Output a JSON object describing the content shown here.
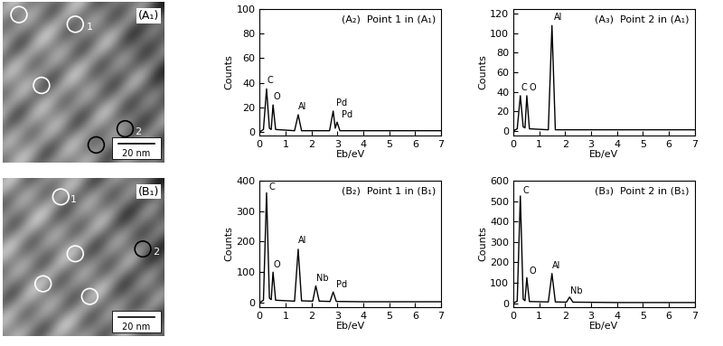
{
  "images": [
    {
      "label": "(A₁)",
      "points": [
        "1",
        "2"
      ],
      "scale_bar": "20 nm"
    },
    {
      "label": "(B₁)",
      "points": [
        "1",
        "2"
      ],
      "scale_bar": "20 nm"
    }
  ],
  "chart_data": [
    {
      "type": "line",
      "title": "(A₂)  Point 1 in (A₁)",
      "x_label": "Eb/eV",
      "y_label": "Counts",
      "color": "#000000",
      "x": [
        0,
        0.15,
        0.27,
        0.38,
        0.45,
        0.52,
        0.62,
        1.35,
        1.49,
        1.62,
        2.7,
        2.84,
        2.92,
        2.99,
        3.1,
        4,
        7
      ],
      "values": [
        0,
        2,
        35,
        3,
        2,
        22,
        2,
        1,
        14,
        1,
        1,
        17,
        3,
        8,
        1,
        1,
        1
      ],
      "xlim": [
        0,
        7
      ],
      "xticks": [
        0,
        1,
        2,
        3,
        4,
        5,
        6,
        7
      ],
      "ylim": [
        -3,
        100
      ],
      "yticks": [
        0,
        20,
        40,
        60,
        80,
        100
      ],
      "annotations": [
        {
          "text": "C",
          "x": 0.3,
          "y": 38
        },
        {
          "text": "O",
          "x": 0.55,
          "y": 25
        },
        {
          "text": "Al",
          "x": 1.5,
          "y": 17
        },
        {
          "text": "Pd",
          "x": 2.95,
          "y": 20
        },
        {
          "text": "Pd",
          "x": 3.15,
          "y": 10
        }
      ]
    },
    {
      "type": "line",
      "title": "(A₃)  Point 2 in (A₁)",
      "x_label": "Eb/eV",
      "y_label": "Counts",
      "color": "#000000",
      "x": [
        0,
        0.15,
        0.27,
        0.38,
        0.45,
        0.52,
        0.62,
        1.35,
        1.49,
        1.62,
        4,
        7
      ],
      "values": [
        0,
        2,
        36,
        4,
        3,
        36,
        2,
        1,
        108,
        1,
        1,
        1
      ],
      "xlim": [
        0,
        7
      ],
      "xticks": [
        0,
        1,
        2,
        3,
        4,
        5,
        6,
        7
      ],
      "ylim": [
        -5,
        125
      ],
      "yticks": [
        0,
        20,
        40,
        60,
        80,
        100,
        120
      ],
      "annotations": [
        {
          "text": "C",
          "x": 0.3,
          "y": 40
        },
        {
          "text": "O",
          "x": 0.6,
          "y": 40
        },
        {
          "text": "Al",
          "x": 1.55,
          "y": 112
        }
      ]
    },
    {
      "type": "line",
      "title": "(B₂)  Point 1 in (B₁)",
      "x_label": "Eb/eV",
      "y_label": "Counts",
      "color": "#000000",
      "x": [
        0,
        0.15,
        0.27,
        0.38,
        0.45,
        0.52,
        0.62,
        1.35,
        1.49,
        1.62,
        2.05,
        2.17,
        2.3,
        2.72,
        2.84,
        2.96,
        4,
        7
      ],
      "values": [
        0,
        8,
        360,
        15,
        10,
        100,
        8,
        5,
        175,
        6,
        5,
        55,
        5,
        4,
        35,
        4,
        3,
        3
      ],
      "xlim": [
        0,
        7
      ],
      "xticks": [
        0,
        1,
        2,
        3,
        4,
        5,
        6,
        7
      ],
      "ylim": [
        -15,
        400
      ],
      "yticks": [
        0,
        100,
        200,
        300,
        400
      ],
      "annotations": [
        {
          "text": "C",
          "x": 0.35,
          "y": 365
        },
        {
          "text": "O",
          "x": 0.55,
          "y": 110
        },
        {
          "text": "Al",
          "x": 1.5,
          "y": 190
        },
        {
          "text": "Nb",
          "x": 2.2,
          "y": 65
        },
        {
          "text": "Pd",
          "x": 2.95,
          "y": 45
        }
      ]
    },
    {
      "type": "line",
      "title": "(B₃)  Point 2 in (B₁)",
      "x_label": "Eb/eV",
      "y_label": "Counts",
      "color": "#000000",
      "x": [
        0,
        0.15,
        0.27,
        0.38,
        0.45,
        0.52,
        0.62,
        1.35,
        1.49,
        1.62,
        2.05,
        2.17,
        2.3,
        4,
        7
      ],
      "values": [
        0,
        10,
        525,
        20,
        12,
        125,
        8,
        6,
        145,
        6,
        5,
        30,
        5,
        3,
        3
      ],
      "xlim": [
        0,
        7
      ],
      "xticks": [
        0,
        1,
        2,
        3,
        4,
        5,
        6,
        7
      ],
      "ylim": [
        -20,
        600
      ],
      "yticks": [
        0,
        100,
        200,
        300,
        400,
        500,
        600
      ],
      "annotations": [
        {
          "text": "C",
          "x": 0.38,
          "y": 530
        },
        {
          "text": "O",
          "x": 0.6,
          "y": 135
        },
        {
          "text": "Al",
          "x": 1.5,
          "y": 160
        },
        {
          "text": "Nb",
          "x": 2.2,
          "y": 40
        }
      ]
    }
  ]
}
